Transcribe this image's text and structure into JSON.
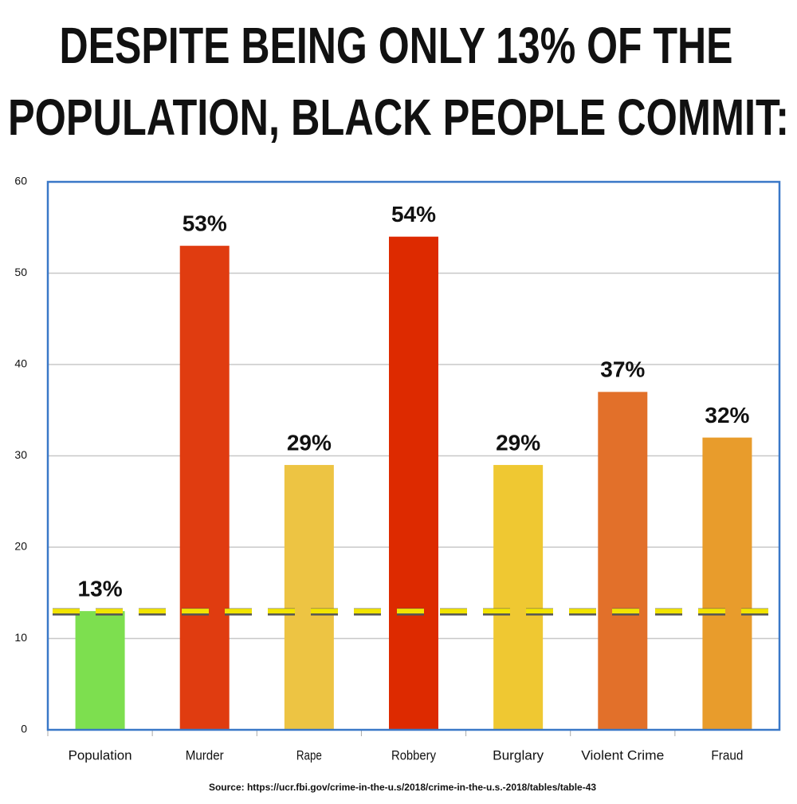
{
  "chart_data": {
    "type": "bar",
    "title_lines": [
      "DESPITE BEING ONLY 13% OF THE",
      "POPULATION, BLACK PEOPLE COMMIT:"
    ],
    "categories": [
      "Population",
      "Murder",
      "Rape",
      "Robbery",
      "Burglary",
      "Violent Crime",
      "Fraud"
    ],
    "values": [
      13,
      53,
      29,
      54,
      29,
      37,
      32
    ],
    "value_labels": [
      "13%",
      "53%",
      "29%",
      "54%",
      "29%",
      "37%",
      "32%"
    ],
    "colors": [
      "#7ddf4f",
      "#e03c10",
      "#edc443",
      "#dd2a00",
      "#efc832",
      "#e2702a",
      "#e89c2c"
    ],
    "ylim": [
      0,
      60
    ],
    "yticks": [
      0,
      10,
      20,
      30,
      40,
      50,
      60
    ],
    "grid": true,
    "reference_line": 13,
    "source": "Source: https://ucr.fbi.gov/crime-in-the-u.s/2018/crime-in-the-u.s.-2018/tables/table-43"
  }
}
